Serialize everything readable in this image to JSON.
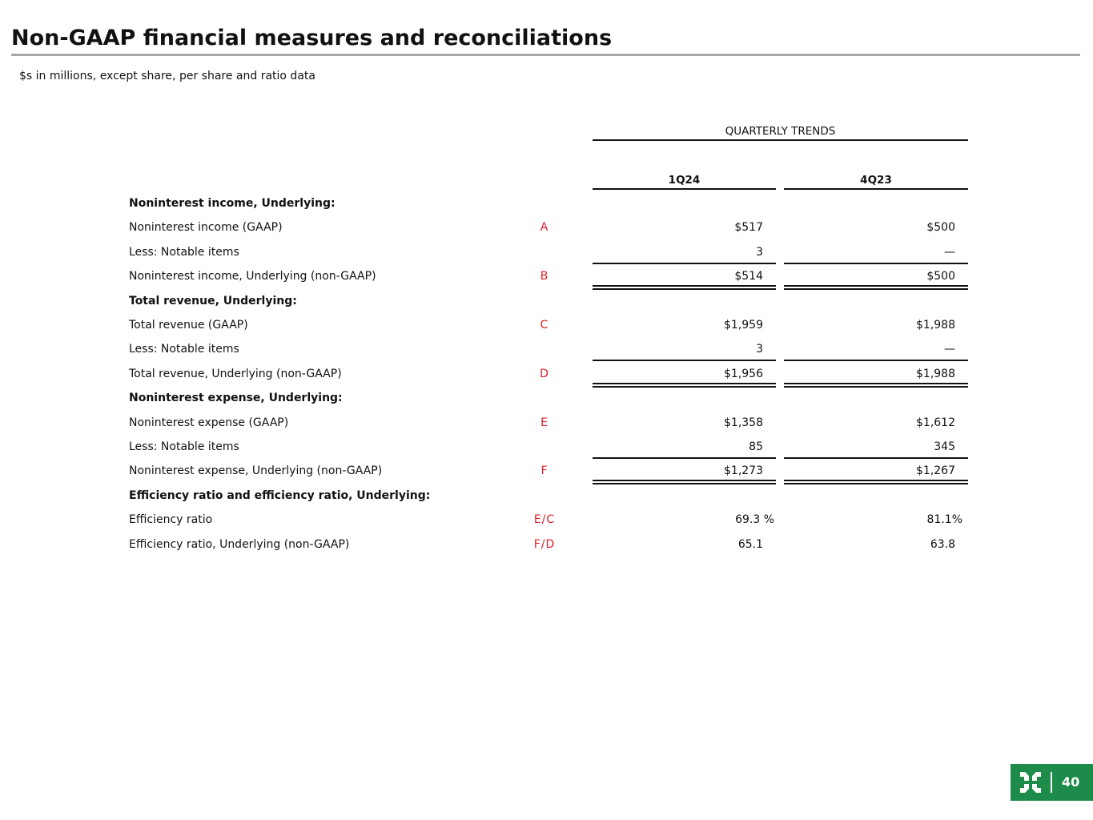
{
  "title": "Non-GAAP financial measures and reconciliations",
  "subtitle": "$s in millions, except share, per share and ratio data",
  "table": {
    "group_header": "QUARTERLY TRENDS",
    "columns": [
      "1Q24",
      "4Q23"
    ],
    "rows": [
      {
        "label": "Noninterest income, Underlying:",
        "bold": true,
        "ref": "",
        "values": [
          "",
          ""
        ]
      },
      {
        "label": "Noninterest income (GAAP)",
        "ref": "A",
        "values": [
          "$517",
          "$500"
        ]
      },
      {
        "label": "Less: Notable items",
        "ref": "",
        "values": [
          "3",
          "—"
        ],
        "underline": "single"
      },
      {
        "label": "Noninterest income, Underlying (non-GAAP)",
        "ref": "B",
        "values": [
          "$514",
          "$500"
        ],
        "underline": "double"
      },
      {
        "label": "Total revenue, Underlying:",
        "bold": true,
        "ref": "",
        "values": [
          "",
          ""
        ]
      },
      {
        "label": "Total revenue (GAAP)",
        "ref": "C",
        "values": [
          "$1,959",
          "$1,988"
        ]
      },
      {
        "label": "Less: Notable items",
        "ref": "",
        "values": [
          "3",
          "—"
        ],
        "underline": "single"
      },
      {
        "label": "Total revenue, Underlying (non-GAAP)",
        "ref": "D",
        "values": [
          "$1,956",
          "$1,988"
        ],
        "underline": "double"
      },
      {
        "label": "Noninterest expense, Underlying:",
        "bold": true,
        "ref": "",
        "values": [
          "",
          ""
        ]
      },
      {
        "label": "Noninterest expense (GAAP)",
        "ref": "E",
        "values": [
          "$1,358",
          "$1,612"
        ]
      },
      {
        "label": "Less: Notable items",
        "ref": "",
        "values": [
          "85",
          "345"
        ],
        "underline": "single"
      },
      {
        "label": "Noninterest expense, Underlying (non-GAAP)",
        "ref": "F",
        "values": [
          "$1,273",
          "$1,267"
        ],
        "underline": "double"
      },
      {
        "label": "Efficiency ratio and efficiency ratio, Underlying:",
        "bold": true,
        "ref": "",
        "values": [
          "",
          ""
        ]
      },
      {
        "label": "Efficiency ratio",
        "ref": "E/C",
        "values": [
          "69.3 %",
          "81.1%"
        ],
        "pct": true
      },
      {
        "label": "Efficiency ratio, Underlying (non-GAAP)",
        "ref": "F/D",
        "values": [
          "65.1",
          "63.8"
        ]
      }
    ]
  },
  "footer": {
    "page_number": "40",
    "logo_icon": "citizens-logo-icon",
    "brand_color": "#1d8b4a",
    "ref_color": "#e0202a"
  }
}
